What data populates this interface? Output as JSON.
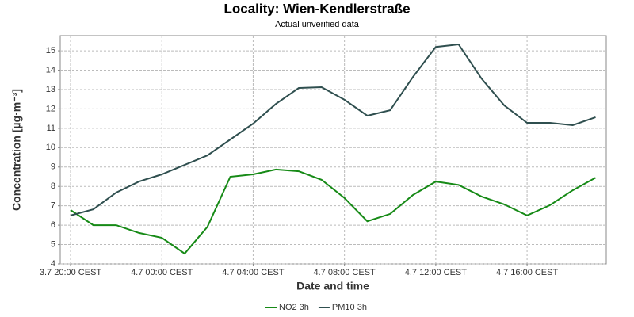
{
  "chart_data": {
    "type": "line",
    "title": "Locality: Wien-Kendlerstraße",
    "subtitle": "Actual unverified data",
    "x_label": "Date and time",
    "y_label": "Concentration [µg·m⁻³]",
    "categories": [
      "3.7 20:00 CEST",
      null,
      null,
      null,
      "4.7 00:00 CEST",
      null,
      null,
      null,
      "4.7 04:00 CEST",
      null,
      null,
      null,
      "4.7 08:00 CEST",
      null,
      null,
      null,
      "4.7 12:00 CEST",
      null,
      null,
      null,
      "4.7 16:00 CEST",
      null,
      null,
      null
    ],
    "series": [
      {
        "name": "NO2 3h",
        "color": "#168a16",
        "values": [
          6.78,
          6.0,
          6.0,
          5.6,
          5.35,
          4.53,
          5.92,
          8.5,
          8.62,
          8.87,
          8.78,
          8.34,
          7.4,
          6.2,
          6.58,
          7.56,
          8.25,
          8.08,
          7.48,
          7.07,
          6.5,
          7.03,
          7.8,
          8.45
        ]
      },
      {
        "name": "PM10 3h",
        "color": "#2f4f4f",
        "values": [
          6.5,
          6.82,
          7.68,
          8.25,
          8.62,
          9.11,
          9.6,
          10.42,
          11.24,
          12.26,
          13.08,
          13.12,
          12.47,
          11.65,
          11.93,
          13.65,
          15.2,
          15.33,
          13.57,
          12.18,
          11.28,
          11.28,
          11.16,
          11.57
        ]
      }
    ],
    "ylim": [
      4,
      15.78
    ],
    "yticks": [
      4,
      5,
      6,
      7,
      8,
      9,
      10,
      11,
      12,
      13,
      14,
      15
    ],
    "grid": true,
    "legend": "bottom"
  }
}
